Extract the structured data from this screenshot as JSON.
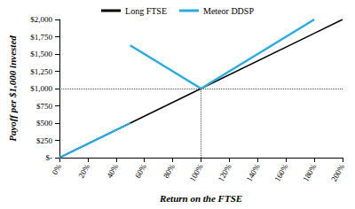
{
  "chart_data": {
    "type": "line",
    "x_label": "Return on the FTSE",
    "y_label": "Payoff per $1,000 invested",
    "x": [
      0,
      50,
      50,
      50,
      100,
      180,
      200
    ],
    "series": [
      {
        "name": "Long FTSE",
        "color": "#000000",
        "values": [
          0,
          500,
          500,
          500,
          1000,
          1800,
          2000
        ]
      },
      {
        "name": "Meteor DDSP",
        "color": "#29abe2",
        "values": [
          0,
          500,
          null,
          1625,
          1000,
          2000,
          null
        ]
      }
    ],
    "xlim": [
      0,
      200
    ],
    "xticks": [
      {
        "value": 0,
        "label": "0%"
      },
      {
        "value": 20,
        "label": "20%"
      },
      {
        "value": 40,
        "label": "40%"
      },
      {
        "value": 60,
        "label": "60%"
      },
      {
        "value": 80,
        "label": "80%"
      },
      {
        "value": 100,
        "label": "100%"
      },
      {
        "value": 120,
        "label": "120%"
      },
      {
        "value": 140,
        "label": "140%"
      },
      {
        "value": 160,
        "label": "160%"
      },
      {
        "value": 180,
        "label": "180%"
      },
      {
        "value": 200,
        "label": "200%"
      }
    ],
    "ylim": [
      0,
      2000
    ],
    "yticks": [
      {
        "value": 0,
        "label": "$-"
      },
      {
        "value": 250,
        "label": "$250"
      },
      {
        "value": 500,
        "label": "$500"
      },
      {
        "value": 750,
        "label": "$750"
      },
      {
        "value": 1000,
        "label": "$1,000"
      },
      {
        "value": 1250,
        "label": "$1,250"
      },
      {
        "value": 1500,
        "label": "$1,500"
      },
      {
        "value": 1750,
        "label": "$1,750"
      },
      {
        "value": 2000,
        "label": "$2,000"
      }
    ],
    "reference_lines": {
      "x": 100,
      "y": 1000
    },
    "grid": false,
    "legend": "top"
  }
}
